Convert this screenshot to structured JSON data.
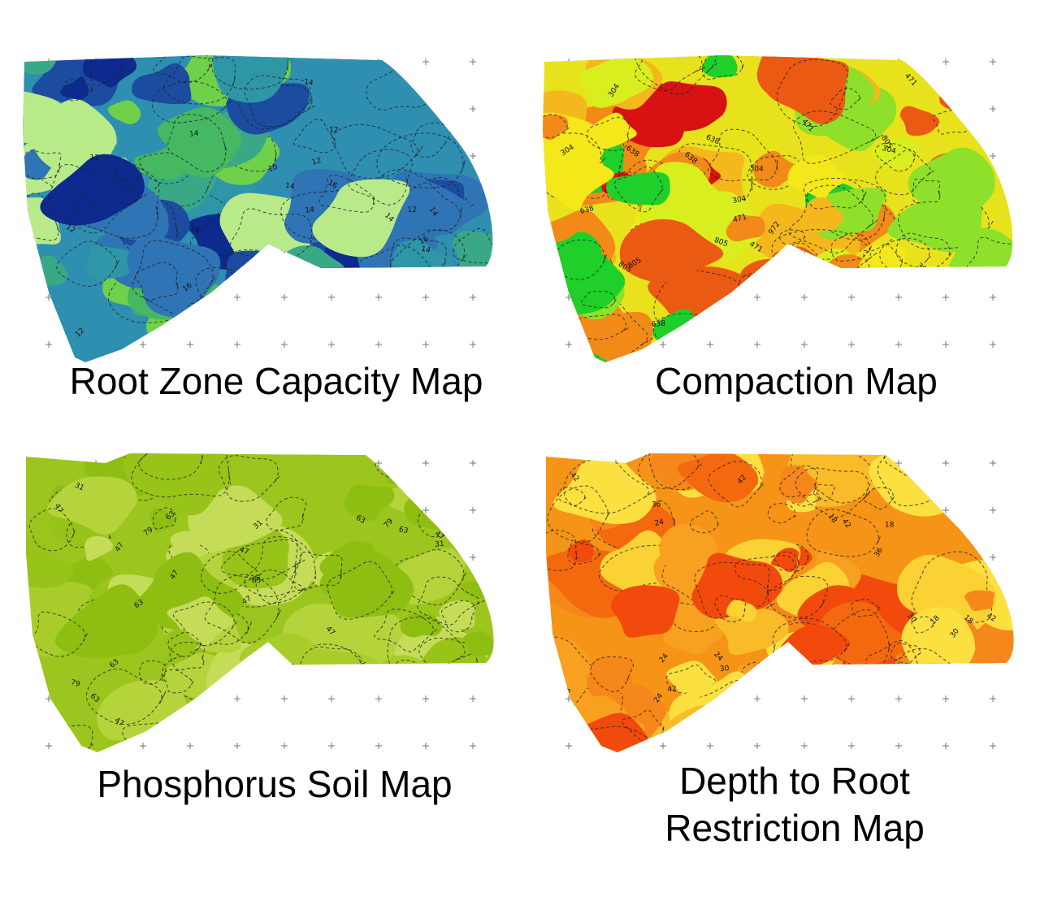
{
  "panels": [
    {
      "id": "root-zone",
      "caption": "Root Zone Capacity Map",
      "palette": [
        "#0d2a8f",
        "#1b4ca0",
        "#2f74b4",
        "#2e96a6",
        "#3aa887",
        "#45b861",
        "#6fd04a",
        "#b8ea8a"
      ],
      "base_color": "#2e8fb0",
      "contour_labels": [
        "16",
        "14",
        "12",
        "10"
      ],
      "label_values": [
        "16",
        "14",
        "12",
        "12",
        "14",
        "12",
        "10",
        "10",
        "14",
        "14",
        "12",
        "14",
        "12",
        "16",
        "16",
        "16",
        "12",
        "12",
        "12",
        "14",
        "14",
        "14",
        "12",
        "12",
        "14"
      ]
    },
    {
      "id": "compaction",
      "caption": "Compaction Map",
      "palette": [
        "#1fcf2a",
        "#8fe02a",
        "#d8ee1f",
        "#f4e81a",
        "#f4b81c",
        "#f28a18",
        "#ea5a12",
        "#d61212"
      ],
      "base_color": "#e8e21c",
      "contour_labels": [
        "304",
        "471",
        "638",
        "805",
        "972"
      ],
      "label_values": [
        "638",
        "304",
        "638",
        "471",
        "304",
        "471",
        "638",
        "304",
        "471",
        "304",
        "805",
        "805",
        "972",
        "638",
        "471",
        "805",
        "638",
        "304",
        "304",
        "471",
        "638",
        "805",
        "304",
        "471",
        "638"
      ]
    },
    {
      "id": "phosphorus",
      "caption": "Phosphorus Soil Map",
      "palette": [
        "#a8cc2a",
        "#98c41a",
        "#8fbe12",
        "#b5d43c",
        "#c5dc58"
      ],
      "base_color": "#9cc51e",
      "contour_labels": [
        "31",
        "47",
        "63",
        "79"
      ],
      "label_values": [
        "47",
        "79",
        "63",
        "63",
        "31",
        "47",
        "63",
        "47",
        "31",
        "63",
        "79",
        "47",
        "63",
        "47",
        "31",
        "63",
        "47",
        "31",
        "47",
        "63",
        "79",
        "31",
        "47",
        "63",
        "31"
      ]
    },
    {
      "id": "depth-root",
      "caption": "Depth to Root Restriction Map",
      "caption_lines": [
        "Depth to Root",
        "Restriction Map"
      ],
      "palette": [
        "#f24a0c",
        "#f4690e",
        "#f6871a",
        "#f8a01f",
        "#f9bb28",
        "#fbd233",
        "#fbe040"
      ],
      "base_color": "#f59416",
      "contour_labels": [
        "18",
        "24",
        "30",
        "36",
        "42"
      ],
      "label_values": [
        "42",
        "36",
        "30",
        "24",
        "18",
        "36",
        "42",
        "30",
        "24",
        "18",
        "36",
        "30",
        "42",
        "18",
        "24",
        "36",
        "30",
        "18",
        "42",
        "24",
        "36",
        "30",
        "18",
        "42",
        "24"
      ]
    }
  ]
}
